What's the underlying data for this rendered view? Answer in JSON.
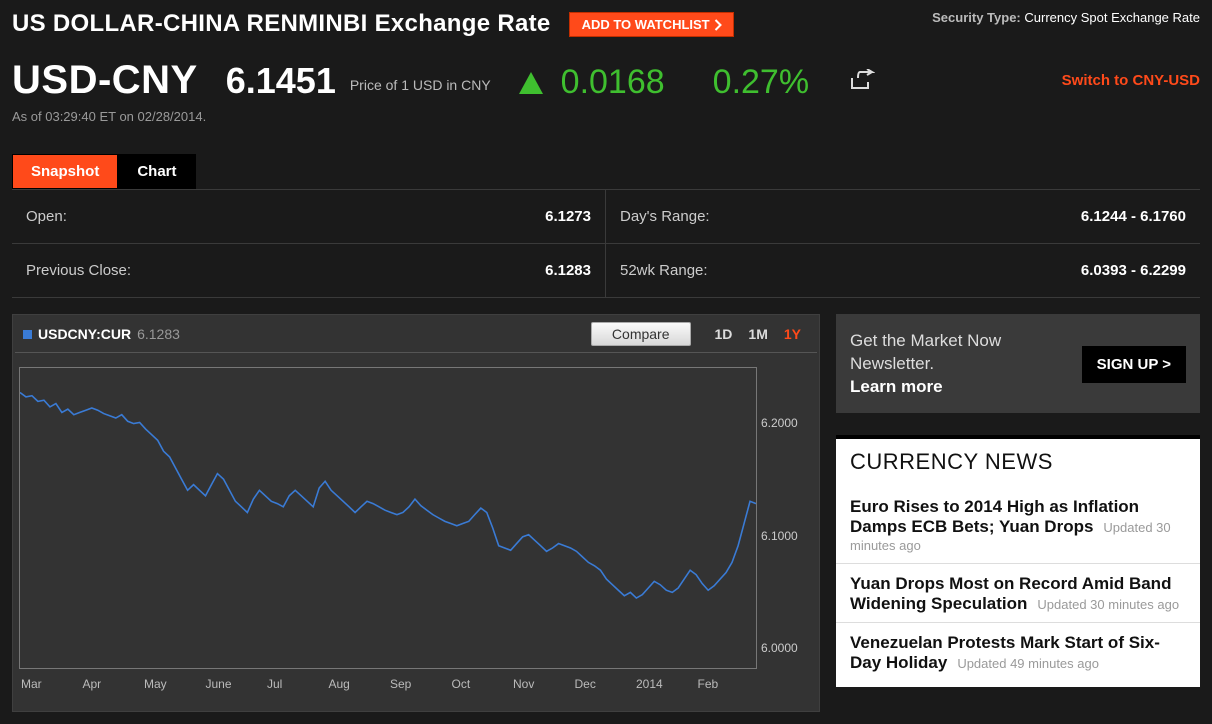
{
  "header": {
    "title": "US DOLLAR-CHINA RENMINBI Exchange Rate",
    "watchlist_label": "ADD TO WATCHLIST",
    "security_type_label": "Security Type:",
    "security_type_value": "Currency Spot Exchange Rate"
  },
  "quote": {
    "pair": "USD-CNY",
    "price": "6.1451",
    "price_desc": "Price of 1 USD in CNY",
    "change": "0.0168",
    "pct": "0.27%",
    "direction": "up",
    "up_color": "#3fbf2f",
    "switch_label": "Switch to CNY-USD",
    "asof": "As of 03:29:40 ET on 02/28/2014."
  },
  "tabs": {
    "snapshot": "Snapshot",
    "chart": "Chart",
    "active": "snapshot"
  },
  "stats": {
    "open_label": "Open:",
    "open_value": "6.1273",
    "prev_label": "Previous Close:",
    "prev_value": "6.1283",
    "dayrange_label": "Day's Range:",
    "dayrange_value": "6.1244 - 6.1760",
    "wk52_label": "52wk Range:",
    "wk52_value": "6.0393 - 6.2299"
  },
  "chart": {
    "series_label": "USDCNY:CUR",
    "series_value": "6.1283",
    "series_color": "#3a7bd5",
    "compare_label": "Compare",
    "timeframe_labels": [
      "1D",
      "1M",
      "1Y"
    ],
    "timeframe_active": "1Y",
    "background_color": "#333333",
    "axis_color": "#777777",
    "grid_color": "#444444",
    "ylim": [
      5.98,
      6.25
    ],
    "yticks": [
      6.0,
      6.1,
      6.2
    ],
    "ytick_labels": [
      "6.0000",
      "6.1000",
      "6.2000"
    ],
    "x_labels": [
      "Mar",
      "Apr",
      "May",
      "June",
      "Jul",
      "Aug",
      "Sep",
      "Oct",
      "Nov",
      "Dec",
      "2014",
      "Feb"
    ],
    "y_values": [
      6.228,
      6.224,
      6.225,
      6.22,
      6.221,
      6.215,
      6.218,
      6.21,
      6.213,
      6.208,
      6.21,
      6.212,
      6.214,
      6.212,
      6.209,
      6.207,
      6.205,
      6.208,
      6.202,
      6.2,
      6.201,
      6.195,
      6.19,
      6.185,
      6.175,
      6.17,
      6.16,
      6.15,
      6.14,
      6.145,
      6.14,
      6.135,
      6.145,
      6.155,
      6.15,
      6.14,
      6.13,
      6.125,
      6.12,
      6.132,
      6.14,
      6.135,
      6.13,
      6.128,
      6.125,
      6.135,
      6.14,
      6.135,
      6.13,
      6.125,
      6.142,
      6.148,
      6.14,
      6.135,
      6.13,
      6.125,
      6.12,
      6.125,
      6.13,
      6.128,
      6.125,
      6.122,
      6.12,
      6.118,
      6.12,
      6.125,
      6.132,
      6.126,
      6.122,
      6.118,
      6.115,
      6.112,
      6.11,
      6.108,
      6.11,
      6.112,
      6.118,
      6.124,
      6.12,
      6.106,
      6.09,
      6.088,
      6.086,
      6.092,
      6.098,
      6.1,
      6.095,
      6.09,
      6.085,
      6.088,
      6.092,
      6.09,
      6.088,
      6.085,
      6.08,
      6.075,
      6.072,
      6.068,
      6.06,
      6.055,
      6.05,
      6.045,
      6.048,
      6.043,
      6.046,
      6.052,
      6.058,
      6.055,
      6.05,
      6.048,
      6.052,
      6.06,
      6.068,
      6.064,
      6.056,
      6.05,
      6.054,
      6.06,
      6.066,
      6.075,
      6.09,
      6.11,
      6.13,
      6.128
    ]
  },
  "promo": {
    "line1": "Get the Market Now Newsletter.",
    "learn": "Learn more",
    "signup_label": "SIGN UP >"
  },
  "news": {
    "header": "CURRENCY NEWS",
    "items": [
      {
        "title": "Euro Rises to 2014 High as Inflation Damps ECB Bets; Yuan Drops",
        "time": "Updated 30 minutes ago"
      },
      {
        "title": "Yuan Drops Most on Record Amid Band Widening Speculation",
        "time": "Updated 30 minutes ago"
      },
      {
        "title": "Venezuelan Protests Mark Start of Six-Day Holiday",
        "time": "Updated 49 minutes ago"
      }
    ]
  },
  "colors": {
    "accent": "#ff4a1a"
  }
}
